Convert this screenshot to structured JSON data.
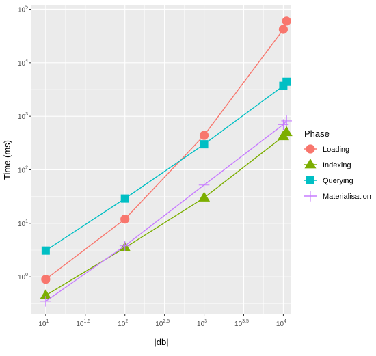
{
  "chart_data": {
    "type": "line",
    "xlabel": "|db|",
    "ylabel": "Time (ms)",
    "x_scale": "log10",
    "y_scale": "log10",
    "xlim": [
      10,
      11200
    ],
    "ylim": [
      0.2,
      100000
    ],
    "x_ticks": [
      {
        "base": "10",
        "exp": "1"
      },
      {
        "base": "10",
        "exp": "1.5"
      },
      {
        "base": "10",
        "exp": "2"
      },
      {
        "base": "10",
        "exp": "2.5"
      },
      {
        "base": "10",
        "exp": "3"
      },
      {
        "base": "10",
        "exp": "3.5"
      },
      {
        "base": "10",
        "exp": "4"
      }
    ],
    "y_ticks": [
      {
        "base": "10",
        "exp": "0"
      },
      {
        "base": "10",
        "exp": "1"
      },
      {
        "base": "10",
        "exp": "2"
      },
      {
        "base": "10",
        "exp": "3"
      },
      {
        "base": "10",
        "exp": "4"
      },
      {
        "base": "10",
        "exp": "5"
      }
    ],
    "grid": true,
    "legend_title": "Phase",
    "legend_position": "right",
    "series": [
      {
        "name": "Loading",
        "color": "#F8766D",
        "shape": "circle",
        "x": [
          10,
          100,
          1000,
          10000,
          11000
        ],
        "y": [
          0.9,
          12,
          440,
          42000,
          60000
        ]
      },
      {
        "name": "Indexing",
        "color": "#7CAE00",
        "shape": "triangle",
        "x": [
          10,
          100,
          1000,
          10000,
          11000
        ],
        "y": [
          0.45,
          3.5,
          30,
          420,
          500
        ]
      },
      {
        "name": "Querying",
        "color": "#00BFC4",
        "shape": "square",
        "x": [
          10,
          100,
          1000,
          10000,
          11000
        ],
        "y": [
          3.1,
          29,
          300,
          3700,
          4400
        ]
      },
      {
        "name": "Materialisation",
        "color": "#C77CFF",
        "shape": "plus",
        "x": [
          10,
          100,
          1000,
          10000,
          11000
        ],
        "y": [
          0.35,
          3.8,
          52,
          700,
          820
        ]
      }
    ]
  }
}
